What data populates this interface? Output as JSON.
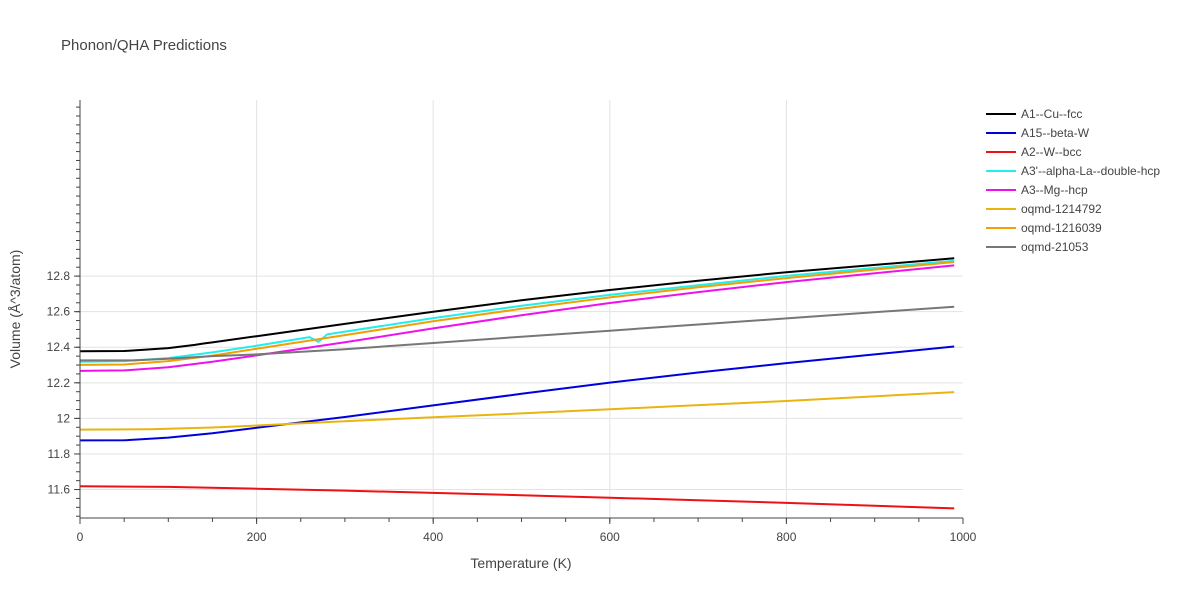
{
  "chart_data": {
    "type": "line",
    "title": "Phonon/QHA Predictions",
    "xlabel": "Temperature (K)",
    "ylabel": "Volume (Å^3/atom)",
    "xlim": [
      0,
      1000
    ],
    "ylim": [
      11.44,
      13.79
    ],
    "x_ticks": [
      0,
      200,
      400,
      600,
      800,
      1000
    ],
    "x_tick_labels": [
      "0",
      "200",
      "400",
      "600",
      "800",
      "1000"
    ],
    "y_ticks": [
      11.6,
      11.8,
      12.0,
      12.2,
      12.4,
      12.6,
      12.8
    ],
    "y_tick_labels": [
      "11.6",
      "11.8",
      "12",
      "12.2",
      "12.4",
      "12.6",
      "12.8"
    ],
    "grid": true,
    "legend_position": "right",
    "series": [
      {
        "name": "A1--Cu--fcc",
        "color": "#000000",
        "points": [
          [
            0,
            12.378
          ],
          [
            50,
            12.379
          ],
          [
            100,
            12.395
          ],
          [
            130,
            12.413
          ],
          [
            140,
            12.421
          ],
          [
            150,
            12.427
          ],
          [
            200,
            12.462
          ],
          [
            300,
            12.531
          ],
          [
            400,
            12.6
          ],
          [
            500,
            12.664
          ],
          [
            600,
            12.722
          ],
          [
            700,
            12.774
          ],
          [
            800,
            12.822
          ],
          [
            990,
            12.9
          ]
        ]
      },
      {
        "name": "A15--beta-W",
        "color": "#0000dd",
        "points": [
          [
            0,
            11.876
          ],
          [
            50,
            11.877
          ],
          [
            100,
            11.892
          ],
          [
            150,
            11.916
          ],
          [
            200,
            11.947
          ],
          [
            300,
            12.008
          ],
          [
            400,
            12.073
          ],
          [
            500,
            12.138
          ],
          [
            600,
            12.201
          ],
          [
            700,
            12.258
          ],
          [
            800,
            12.311
          ],
          [
            990,
            12.404
          ]
        ]
      },
      {
        "name": "A2--W--bcc",
        "color": "#ee1111",
        "points": [
          [
            0,
            11.618
          ],
          [
            100,
            11.615
          ],
          [
            200,
            11.605
          ],
          [
            300,
            11.594
          ],
          [
            400,
            11.581
          ],
          [
            500,
            11.568
          ],
          [
            600,
            11.554
          ],
          [
            700,
            11.54
          ],
          [
            800,
            11.525
          ],
          [
            990,
            11.494
          ]
        ]
      },
      {
        "name": "A3'--alpha-La--double-hcp",
        "color": "#22eeee",
        "points": [
          [
            0,
            12.318
          ],
          [
            50,
            12.322
          ],
          [
            100,
            12.339
          ],
          [
            150,
            12.371
          ],
          [
            200,
            12.408
          ],
          [
            260,
            12.457
          ],
          [
            270,
            12.43
          ],
          [
            280,
            12.472
          ],
          [
            300,
            12.488
          ],
          [
            400,
            12.564
          ],
          [
            500,
            12.633
          ],
          [
            600,
            12.694
          ],
          [
            700,
            12.749
          ],
          [
            800,
            12.801
          ],
          [
            990,
            12.886
          ]
        ]
      },
      {
        "name": "A3--Mg--hcp",
        "color": "#ee11ee",
        "points": [
          [
            0,
            12.267
          ],
          [
            50,
            12.27
          ],
          [
            100,
            12.288
          ],
          [
            150,
            12.318
          ],
          [
            200,
            12.354
          ],
          [
            300,
            12.428
          ],
          [
            400,
            12.506
          ],
          [
            500,
            12.58
          ],
          [
            600,
            12.649
          ],
          [
            700,
            12.71
          ],
          [
            800,
            12.766
          ],
          [
            990,
            12.86
          ]
        ]
      },
      {
        "name": "oqmd-1214792",
        "color": "#e8b510",
        "points": [
          [
            0,
            11.937
          ],
          [
            80,
            11.939
          ],
          [
            150,
            11.949
          ],
          [
            200,
            11.96
          ],
          [
            300,
            11.984
          ],
          [
            400,
            12.006
          ],
          [
            500,
            12.028
          ],
          [
            600,
            12.051
          ],
          [
            700,
            12.075
          ],
          [
            800,
            12.098
          ],
          [
            990,
            12.148
          ]
        ]
      },
      {
        "name": "oqmd-1216039",
        "color": "#f0a000",
        "points": [
          [
            0,
            12.301
          ],
          [
            50,
            12.303
          ],
          [
            100,
            12.322
          ],
          [
            150,
            12.353
          ],
          [
            200,
            12.391
          ],
          [
            300,
            12.468
          ],
          [
            400,
            12.546
          ],
          [
            500,
            12.616
          ],
          [
            600,
            12.68
          ],
          [
            700,
            12.737
          ],
          [
            800,
            12.789
          ],
          [
            990,
            12.879
          ]
        ]
      },
      {
        "name": "oqmd-21053",
        "color": "#777777",
        "points": [
          [
            0,
            12.326
          ],
          [
            60,
            12.326
          ],
          [
            100,
            12.335
          ],
          [
            150,
            12.35
          ],
          [
            200,
            12.36
          ],
          [
            300,
            12.389
          ],
          [
            400,
            12.424
          ],
          [
            500,
            12.459
          ],
          [
            600,
            12.493
          ],
          [
            700,
            12.528
          ],
          [
            800,
            12.562
          ],
          [
            990,
            12.628
          ]
        ]
      }
    ]
  }
}
